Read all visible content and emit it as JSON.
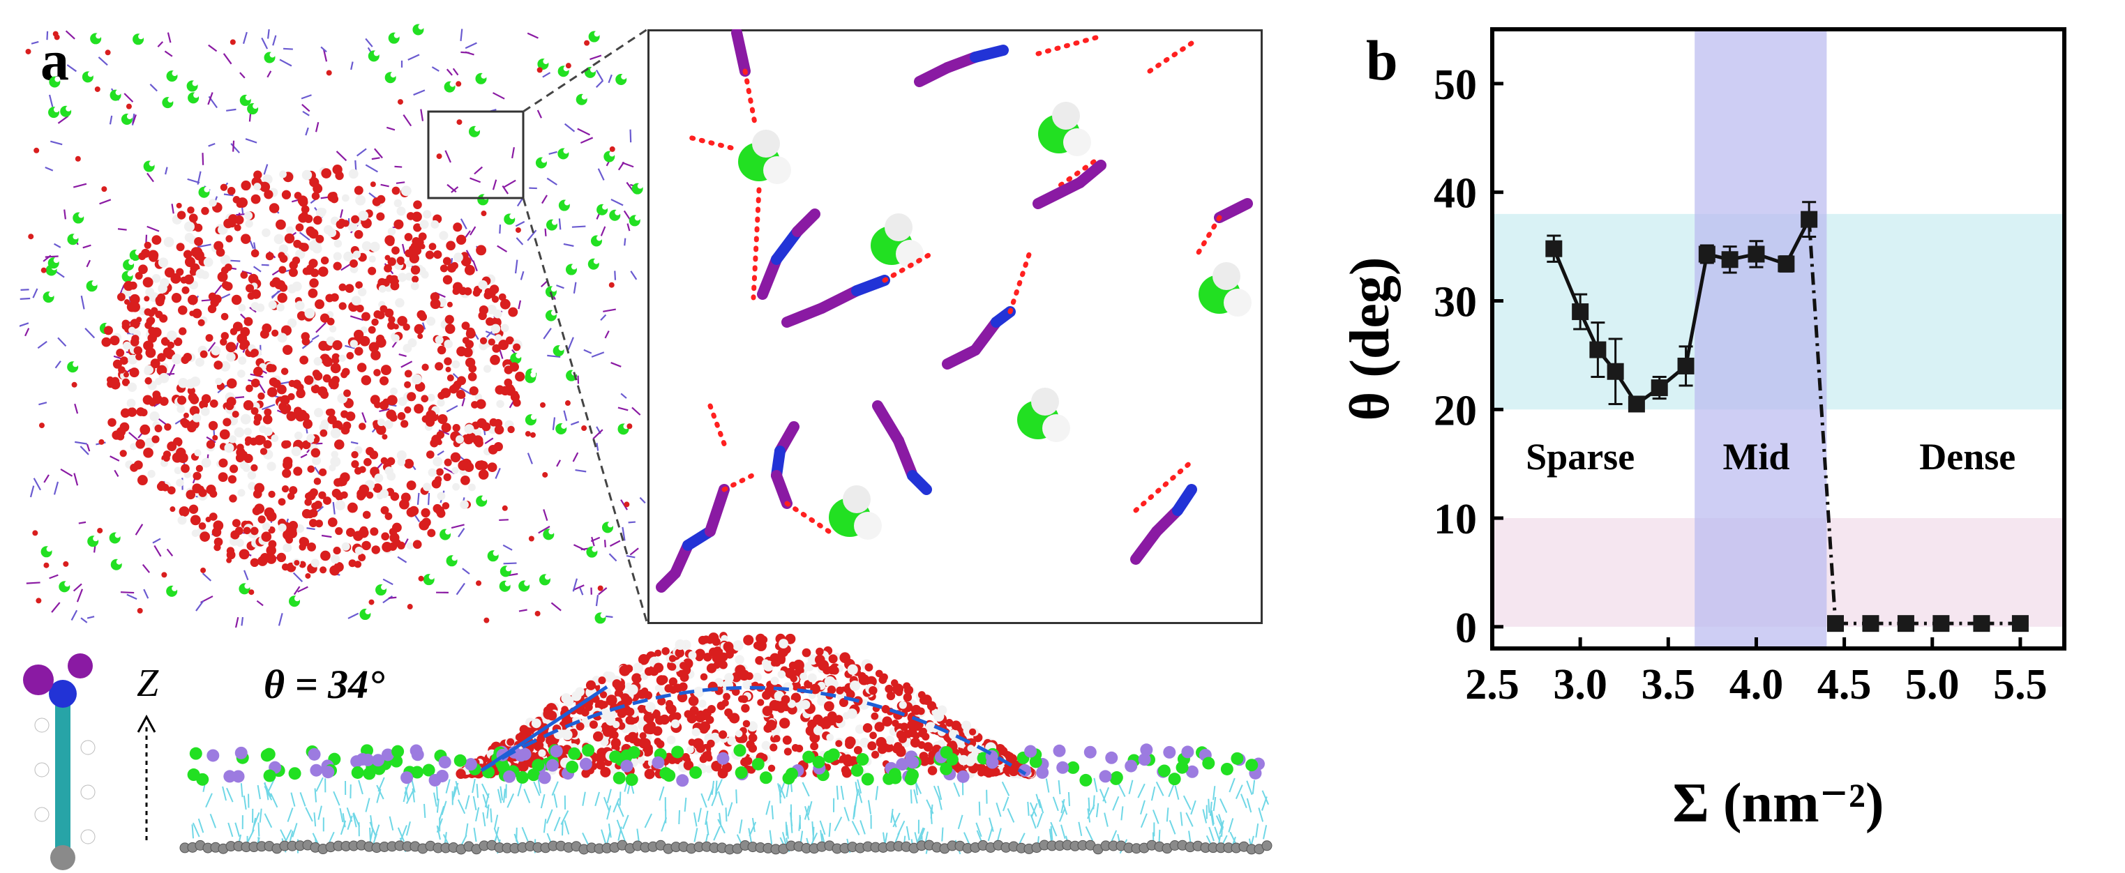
{
  "panel_a": {
    "label": "a",
    "angle_label": "θ = 34°",
    "z_axis_label": "Z"
  },
  "panel_b": {
    "label": "b"
  },
  "colors": {
    "water_oxygen": "#d91e1e",
    "water_hydrogen": "#ffffff",
    "carbon_green": "#22e022",
    "chain_purple": "#8a1aa3",
    "nitrogen_blue": "#2233d6",
    "hbond_red": "#ff2020",
    "alkyl_cyan": "#6fd7e6",
    "substrate_gray": "#8a8a8a",
    "band_cyan": "#cfeff2",
    "band_pink": "#f2e0ec",
    "band_blue": "#b9b9ef",
    "contact_line_blue": "#1e5fd6"
  },
  "chart_data": {
    "type": "scatter",
    "xlabel": "Σ (nm⁻²)",
    "ylabel": "θ (deg)",
    "xlim": [
      2.5,
      5.75
    ],
    "ylim": [
      -2,
      55
    ],
    "xticks": [
      "2.5",
      "3.0",
      "3.5",
      "4.0",
      "4.5",
      "5.0",
      "5.5"
    ],
    "yticks": [
      "0",
      "10",
      "20",
      "30",
      "40",
      "50"
    ],
    "region_labels": [
      "Sparse",
      "Mid",
      "Dense"
    ],
    "bands": [
      {
        "name": "cyan",
        "axis": "y",
        "range": [
          20,
          38
        ]
      },
      {
        "name": "pink",
        "axis": "y",
        "range": [
          0,
          10
        ]
      },
      {
        "name": "blue",
        "axis": "x",
        "range": [
          3.65,
          4.4
        ]
      }
    ],
    "series": [
      {
        "x": [
          2.85,
          3.0,
          3.1,
          3.2,
          3.32,
          3.45,
          3.6,
          3.72,
          3.85,
          4.0,
          4.17,
          4.3,
          4.45,
          4.65,
          4.85,
          5.05,
          5.28,
          5.5
        ],
        "y": [
          34.8,
          29.0,
          25.5,
          23.5,
          20.5,
          22.0,
          24.0,
          34.3,
          33.8,
          34.3,
          33.4,
          37.5,
          0.3,
          0.3,
          0.3,
          0.3,
          0.3,
          0.3
        ],
        "yerr": [
          1.2,
          1.6,
          2.5,
          3.0,
          0.5,
          1.0,
          1.8,
          0.8,
          1.2,
          1.2,
          0.7,
          1.6,
          0.2,
          0.2,
          0.2,
          0.2,
          0.2,
          0.2
        ],
        "segments": [
          {
            "from": 0,
            "to": 6,
            "style": "solid"
          },
          {
            "from": 6,
            "to": 11,
            "style": "solid"
          },
          {
            "from": 11,
            "to": 17,
            "style": "dash-dot"
          }
        ]
      }
    ]
  }
}
